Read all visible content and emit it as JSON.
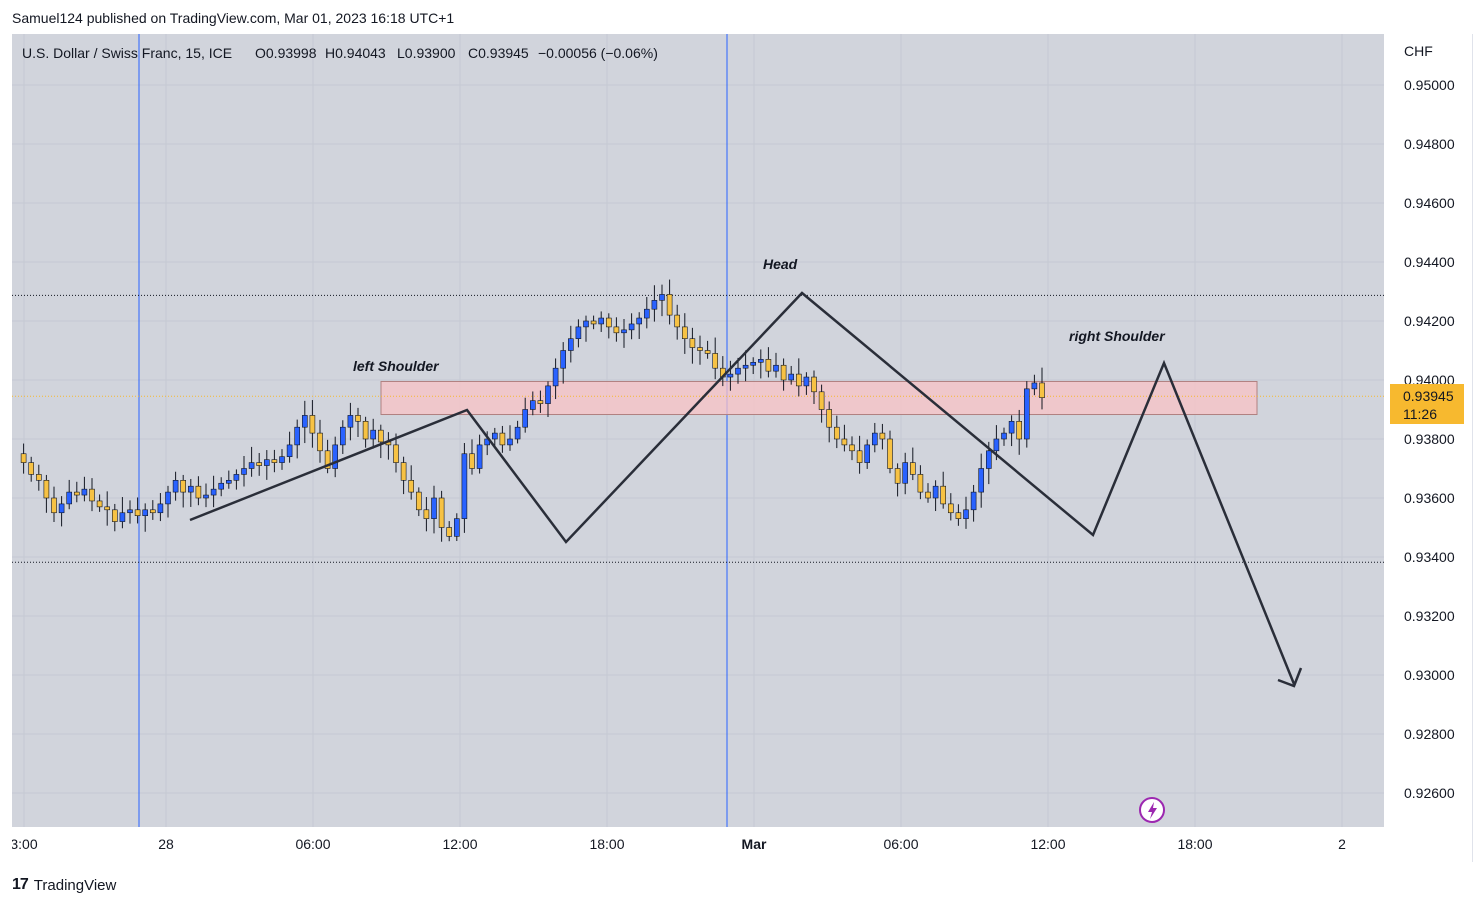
{
  "header": {
    "published_by": "Samuel124 published on TradingView.com, Mar 01, 2023 16:18 UTC+1"
  },
  "legend": {
    "symbol": "U.S. Dollar / Swiss Franc, 15, ICE",
    "open": "O0.93998",
    "high": "H0.94043",
    "low": "L0.93900",
    "close": "C0.93945",
    "change": "−0.00056 (−0.06%)"
  },
  "price_axis": {
    "currency": "CHF",
    "labels": [
      "0.95000",
      "0.94800",
      "0.94600",
      "0.94400",
      "0.94200",
      "0.94000",
      "0.93800",
      "0.93600",
      "0.93400",
      "0.93200",
      "0.93000",
      "0.92800",
      "0.92600"
    ]
  },
  "current_price": {
    "value": "0.93945",
    "countdown": "11:26",
    "color": "#f7b92f"
  },
  "time_axis": {
    "labels": [
      "3:00",
      "28",
      "06:00",
      "12:00",
      "18:00",
      "Mar",
      "06:00",
      "12:00",
      "18:00",
      "2"
    ]
  },
  "annotations": {
    "left_shoulder": "left Shoulder",
    "head": "Head",
    "right_shoulder": "right Shoulder"
  },
  "footer": {
    "brand": "TradingView"
  },
  "colors": {
    "background": "#d1d4dc",
    "up_candle": "#2962ff",
    "down_candle": "#f7c244",
    "wick": "#131722",
    "zone_fill": "#f8c3c6",
    "session_line": "#2962ff",
    "alert_icon": "#9c27b0"
  },
  "chart_data": {
    "type": "candlestick",
    "title": "U.S. Dollar / Swiss Franc, 15, ICE",
    "ylabel": "CHF",
    "ylim": [
      0.925,
      0.9515
    ],
    "pattern": "head and shoulders",
    "resistance_zone": [
      0.93883,
      0.93995
    ],
    "horizontal_levels": [
      0.94287,
      0.93382
    ],
    "pattern_lines": [
      {
        "label": "left Shoulder neckline-rise",
        "points": [
          [
            0,
            0.9353
          ],
          [
            1,
            0.939
          ],
          [
            2,
            0.9346
          ]
        ]
      },
      {
        "label": "Head",
        "points": [
          [
            2,
            0.9346
          ],
          [
            3,
            0.943
          ],
          [
            4,
            0.9348
          ]
        ]
      },
      {
        "label": "right Shoulder",
        "points": [
          [
            4,
            0.9348
          ],
          [
            5,
            0.9405
          ],
          [
            6,
            0.9297
          ]
        ]
      }
    ],
    "path_points": [
      0.9375,
      0.9372,
      0.9368,
      0.9366,
      0.936,
      0.9355,
      0.9358,
      0.9362,
      0.9361,
      0.9363,
      0.9359,
      0.9357,
      0.9356,
      0.9352,
      0.9355,
      0.9356,
      0.9354,
      0.9356,
      0.9355,
      0.9358,
      0.9362,
      0.9366,
      0.9362,
      0.9364,
      0.936,
      0.9361,
      0.9363,
      0.9365,
      0.9366,
      0.9368,
      0.937,
      0.9372,
      0.9371,
      0.9373,
      0.9372,
      0.9374,
      0.9378,
      0.9384,
      0.9388,
      0.9382,
      0.9376,
      0.937,
      0.9378,
      0.9384,
      0.9388,
      0.9386,
      0.938,
      0.9383,
      0.9379,
      0.9378,
      0.9372,
      0.9366,
      0.9362,
      0.9356,
      0.9353,
      0.936,
      0.935,
      0.9347,
      0.9353,
      0.9375,
      0.937,
      0.9378,
      0.938,
      0.9382,
      0.9378,
      0.938,
      0.9384,
      0.939,
      0.9393,
      0.9392,
      0.9398,
      0.9404,
      0.941,
      0.9414,
      0.9418,
      0.942,
      0.9419,
      0.9421,
      0.9418,
      0.9416,
      0.9417,
      0.9419,
      0.9421,
      0.9424,
      0.9427,
      0.9429,
      0.9422,
      0.9418,
      0.9414,
      0.9411,
      0.941,
      0.9409,
      0.9404,
      0.9401,
      0.9402,
      0.9404,
      0.9405,
      0.9406,
      0.9407,
      0.9403,
      0.9405,
      0.94,
      0.9402,
      0.9398,
      0.9401,
      0.9396,
      0.939,
      0.9384,
      0.938,
      0.9378,
      0.9376,
      0.9372,
      0.9378,
      0.9382,
      0.938,
      0.937,
      0.9365,
      0.9372,
      0.9368,
      0.9362,
      0.936,
      0.9364,
      0.9358,
      0.9355,
      0.9353,
      0.9356,
      0.9362,
      0.937,
      0.9376,
      0.938,
      0.9382,
      0.9386,
      0.938,
      0.9397,
      0.9399,
      0.9394
    ]
  }
}
